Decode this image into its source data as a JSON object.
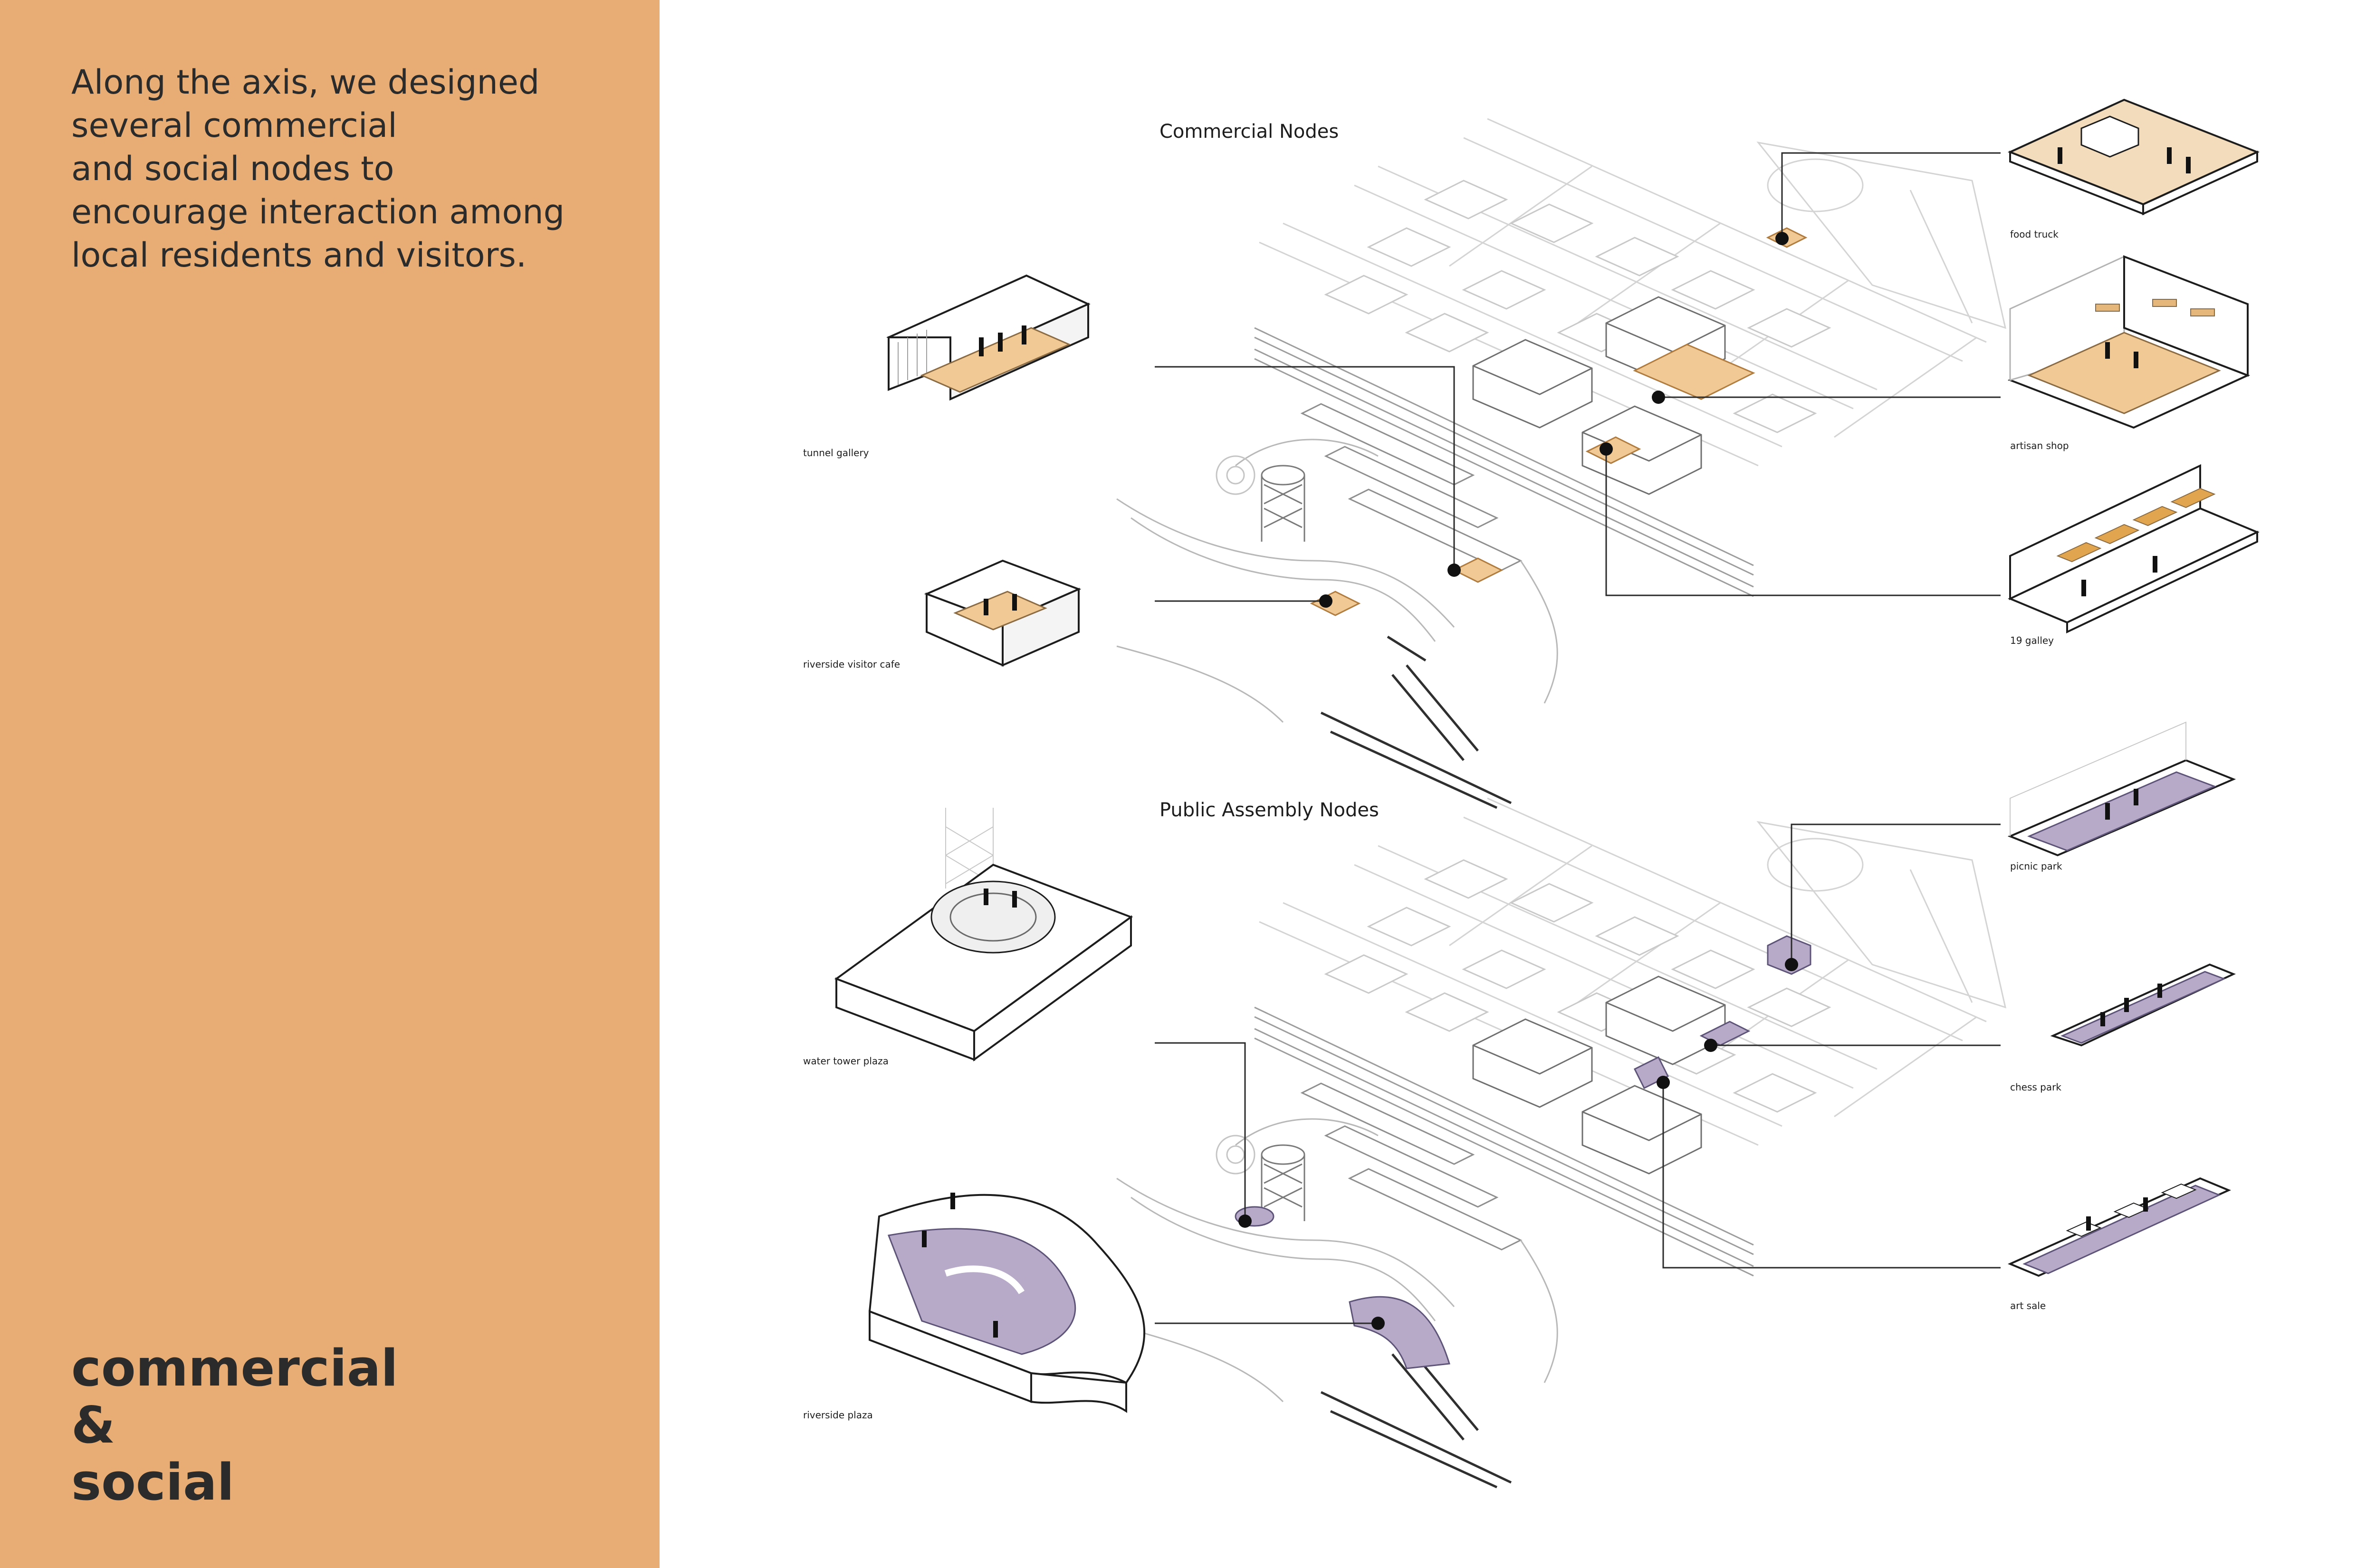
{
  "sidebar": {
    "intro_lines": [
      "Along the axis, we designed",
      "several commercial",
      "and social nodes to",
      "encourage interaction among",
      "local residents and visitors."
    ],
    "title_lines": [
      "commercial",
      "&",
      "social"
    ],
    "background_color": "#e8ad74"
  },
  "sections": [
    {
      "title": "Commercial Nodes",
      "accent_color": "#f0c995",
      "nodes_left": [
        "tunnel gallery",
        "riverside visitor cafe"
      ],
      "nodes_right": [
        "food truck",
        "artisan shop",
        "19 galley"
      ]
    },
    {
      "title": "Public Assembly Nodes",
      "accent_color": "#b6aac8",
      "nodes_left": [
        "water tower plaza",
        "riverside plaza"
      ],
      "nodes_right": [
        "picnic park",
        "chess park",
        "art sale"
      ]
    }
  ],
  "colors": {
    "line": "#d6d6d6",
    "ink": "#1d1d1d"
  }
}
